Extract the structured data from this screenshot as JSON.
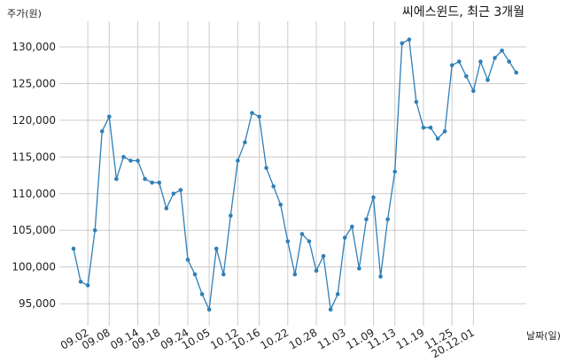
{
  "chart_data": {
    "type": "line",
    "title": "씨에스윈드, 최근 3개월",
    "xlabel": "날짜(일)",
    "ylabel": "주가(원)",
    "ylim": [
      92000,
      133500
    ],
    "y_ticks": [
      95000,
      100000,
      105000,
      110000,
      115000,
      120000,
      125000,
      130000
    ],
    "y_tick_labels": [
      "95,000",
      "100,000",
      "105,000",
      "110,000",
      "115,000",
      "120,000",
      "125,000",
      "130,000"
    ],
    "x_tick_labels": [
      "09.02",
      "09.08",
      "09.14",
      "09.18",
      "09.24",
      "10.05",
      "10.12",
      "10.16",
      "10.22",
      "10.28",
      "11.03",
      "11.09",
      "11.13",
      "11.19",
      "11.25",
      "20.12.01"
    ],
    "x_tick_indices": [
      2,
      5,
      9,
      12,
      16,
      19,
      23,
      26,
      30,
      34,
      38,
      42,
      45,
      49,
      53,
      56
    ],
    "grid": true,
    "color": "#2e7fb8",
    "values": [
      102500,
      98000,
      97500,
      105000,
      118500,
      120500,
      112000,
      115000,
      114500,
      114500,
      112000,
      111500,
      111500,
      108000,
      110000,
      110500,
      101000,
      99000,
      96300,
      94200,
      102500,
      99000,
      107000,
      114500,
      117000,
      121000,
      120500,
      113500,
      111000,
      108500,
      103500,
      99000,
      104500,
      103500,
      99500,
      101500,
      94200,
      96300,
      104000,
      105500,
      99800,
      106500,
      109500,
      98700,
      106500,
      113000,
      130500,
      131000,
      122500,
      119000,
      119000,
      117500,
      118500,
      127500,
      128000,
      126000,
      124000,
      128000,
      125500,
      128500,
      129500,
      128000,
      126500
    ]
  }
}
